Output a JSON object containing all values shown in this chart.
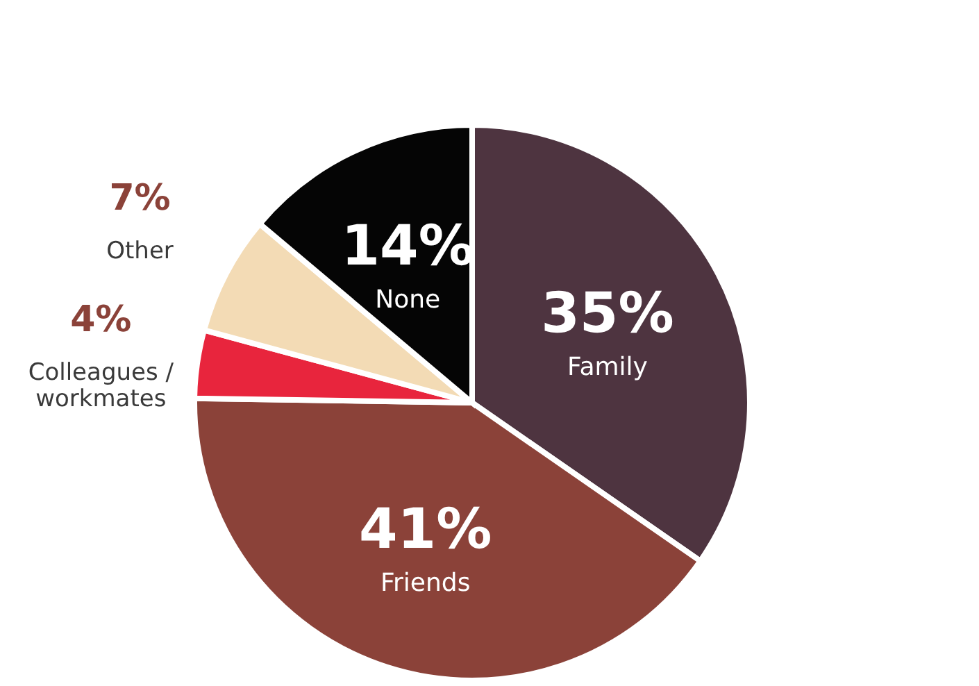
{
  "chart_data": {
    "type": "pie",
    "categories": [
      "Family",
      "Friends",
      "Colleagues /\nworkmates",
      "Other",
      "None"
    ],
    "values": [
      35,
      41,
      4,
      7,
      14
    ],
    "value_labels": [
      "35%",
      "41%",
      "4%",
      "7%",
      "14%"
    ],
    "colors": [
      "#4e3440",
      "#8b4239",
      "#e8253d",
      "#f3dbb5",
      "#050505"
    ],
    "legend": false
  }
}
